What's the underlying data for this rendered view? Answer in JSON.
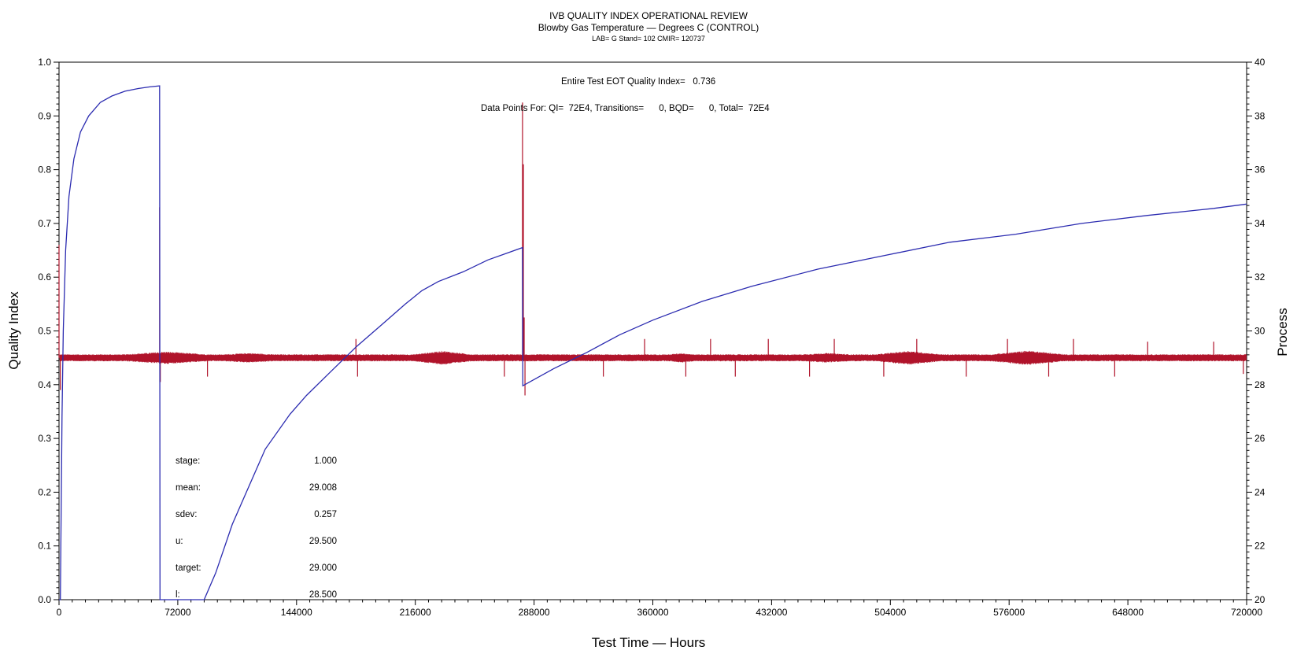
{
  "chart_data": {
    "type": "line",
    "title": "IVB QUALITY INDEX OPERATIONAL REVIEW",
    "subtitle": "Blowby Gas Temperature — Degrees C (CONTROL)",
    "subtitle2": "LAB= G Stand= 102 CMIR= 120737",
    "xlabel": "Test Time — Hours",
    "ylabel": "Quality Index",
    "y2label": "Process",
    "xlim": [
      0,
      720000
    ],
    "ylim": [
      0,
      1.0
    ],
    "y2lim": [
      20,
      40
    ],
    "x_ticks": [
      "0",
      "72000",
      "144000",
      "216000",
      "288000",
      "360000",
      "432000",
      "504000",
      "576000",
      "648000",
      "720000"
    ],
    "y_ticks": [
      "0.0",
      "0.1",
      "0.2",
      "0.3",
      "0.4",
      "0.5",
      "0.6",
      "0.7",
      "0.8",
      "0.9",
      "1.0"
    ],
    "y2_ticks": [
      "20",
      "22",
      "24",
      "26",
      "28",
      "30",
      "32",
      "34",
      "36",
      "38",
      "40"
    ],
    "annotations": {
      "qi_text": "Entire Test EOT Quality Index=   0.736",
      "points_text": "Data Points For: QI=  72E4, Transitions=      0, BQD=      0, Total=  72E4"
    },
    "stats": [
      {
        "label": "stage:",
        "value": "1.000"
      },
      {
        "label": "mean:",
        "value": "29.008"
      },
      {
        "label": "sdev:",
        "value": "0.257"
      },
      {
        "label": "u:",
        "value": "29.500"
      },
      {
        "label": "target:",
        "value": "29.000"
      },
      {
        "label": "l:",
        "value": "28.500"
      }
    ],
    "series": [
      {
        "axis": "left",
        "color": "#2b2bb0",
        "points": [
          [
            0,
            0.0
          ],
          [
            800,
            0.0
          ],
          [
            1200,
            0.13
          ],
          [
            1800,
            0.34
          ],
          [
            2600,
            0.5
          ],
          [
            4000,
            0.65
          ],
          [
            6000,
            0.75
          ],
          [
            9000,
            0.82
          ],
          [
            13000,
            0.87
          ],
          [
            18000,
            0.9
          ],
          [
            25000,
            0.925
          ],
          [
            32000,
            0.937
          ],
          [
            40000,
            0.946
          ],
          [
            48000,
            0.951
          ],
          [
            55000,
            0.954
          ],
          [
            61000,
            0.956
          ],
          [
            61200,
            0.0
          ],
          [
            88000,
            0.0
          ],
          [
            95000,
            0.05
          ],
          [
            105000,
            0.14
          ],
          [
            115000,
            0.21
          ],
          [
            125000,
            0.28
          ],
          [
            140000,
            0.345
          ],
          [
            150000,
            0.38
          ],
          [
            165000,
            0.425
          ],
          [
            180000,
            0.47
          ],
          [
            195000,
            0.51
          ],
          [
            210000,
            0.55
          ],
          [
            220000,
            0.575
          ],
          [
            230000,
            0.592
          ],
          [
            245000,
            0.61
          ],
          [
            260000,
            0.632
          ],
          [
            281000,
            0.655
          ],
          [
            281200,
            0.398
          ],
          [
            300000,
            0.43
          ],
          [
            320000,
            0.46
          ],
          [
            340000,
            0.493
          ],
          [
            360000,
            0.52
          ],
          [
            390000,
            0.555
          ],
          [
            420000,
            0.583
          ],
          [
            460000,
            0.615
          ],
          [
            500000,
            0.64
          ],
          [
            540000,
            0.665
          ],
          [
            580000,
            0.68
          ],
          [
            620000,
            0.7
          ],
          [
            660000,
            0.715
          ],
          [
            700000,
            0.728
          ],
          [
            720000,
            0.736
          ]
        ]
      },
      {
        "axis": "right",
        "color": "#b0132a",
        "center": 29.0,
        "spikes": [
          {
            "x": 0,
            "y": 33.2
          },
          {
            "x": 800,
            "y": 27.8
          },
          {
            "x": 61000,
            "y": 34.6
          },
          {
            "x": 61400,
            "y": 28.1
          },
          {
            "x": 90000,
            "y": 28.3
          },
          {
            "x": 180000,
            "y": 29.7
          },
          {
            "x": 181000,
            "y": 28.3
          },
          {
            "x": 270000,
            "y": 28.3
          },
          {
            "x": 281000,
            "y": 38.5
          },
          {
            "x": 281500,
            "y": 36.2
          },
          {
            "x": 282000,
            "y": 30.5
          },
          {
            "x": 282500,
            "y": 27.6
          },
          {
            "x": 330000,
            "y": 28.3
          },
          {
            "x": 355000,
            "y": 29.7
          },
          {
            "x": 380000,
            "y": 28.3
          },
          {
            "x": 395000,
            "y": 29.7
          },
          {
            "x": 410000,
            "y": 28.3
          },
          {
            "x": 430000,
            "y": 29.7
          },
          {
            "x": 455000,
            "y": 28.3
          },
          {
            "x": 470000,
            "y": 29.7
          },
          {
            "x": 500000,
            "y": 28.3
          },
          {
            "x": 520000,
            "y": 29.7
          },
          {
            "x": 550000,
            "y": 28.3
          },
          {
            "x": 575000,
            "y": 29.7
          },
          {
            "x": 600000,
            "y": 28.3
          },
          {
            "x": 615000,
            "y": 29.7
          },
          {
            "x": 640000,
            "y": 28.3
          },
          {
            "x": 660000,
            "y": 29.6
          },
          {
            "x": 700000,
            "y": 29.6
          },
          {
            "x": 718000,
            "y": 28.4
          }
        ]
      }
    ]
  }
}
